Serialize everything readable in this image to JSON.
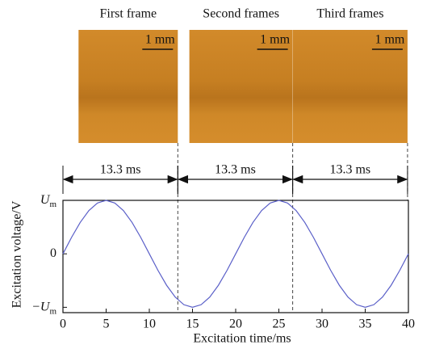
{
  "chart_data": {
    "type": "line",
    "x_label": "Excitation time/ms",
    "y_label": "Excitation voltage/V",
    "x": [
      0,
      1,
      2,
      3,
      4,
      5,
      6,
      7,
      8,
      9,
      10,
      11,
      12,
      13,
      14,
      15,
      16,
      17,
      18,
      19,
      20,
      21,
      22,
      23,
      24,
      25,
      26,
      27,
      28,
      29,
      30,
      31,
      32,
      33,
      34,
      35,
      36,
      37,
      38,
      39,
      40
    ],
    "series": [
      {
        "color": "#5a5fc8",
        "values": [
          0,
          0.309,
          0.588,
          0.809,
          0.951,
          1,
          0.951,
          0.809,
          0.588,
          0.309,
          0,
          -0.309,
          -0.588,
          -0.809,
          -0.951,
          -1,
          -0.951,
          -0.809,
          -0.588,
          -0.309,
          0,
          0.309,
          0.588,
          0.809,
          0.951,
          1,
          0.951,
          0.809,
          0.588,
          0.309,
          0,
          -0.309,
          -0.588,
          -0.809,
          -0.951,
          -1,
          -0.951,
          -0.809,
          -0.588,
          -0.309,
          0
        ]
      }
    ],
    "xlim": [
      0,
      40
    ],
    "xticks": [
      0,
      5,
      10,
      15,
      20,
      25,
      30,
      35,
      40
    ],
    "ylim": [
      -1.1,
      1.0
    ],
    "yticks": [
      {
        "value": -1,
        "label": "−U",
        "subscript": "m"
      },
      {
        "value": 0,
        "label": "0"
      },
      {
        "value": 1,
        "label": "U",
        "subscript": "m"
      }
    ],
    "frames": [
      {
        "title": "First frame",
        "scale_bar": "1 mm",
        "duration": 13.3,
        "duration_label": "13.3 ms"
      },
      {
        "title": "Second frames",
        "scale_bar": "1 mm",
        "duration": 13.3,
        "duration_label": "13.3 ms"
      },
      {
        "title": "Third frames",
        "scale_bar": "1 mm",
        "duration": 13.3,
        "duration_label": "13.3 ms"
      }
    ]
  }
}
